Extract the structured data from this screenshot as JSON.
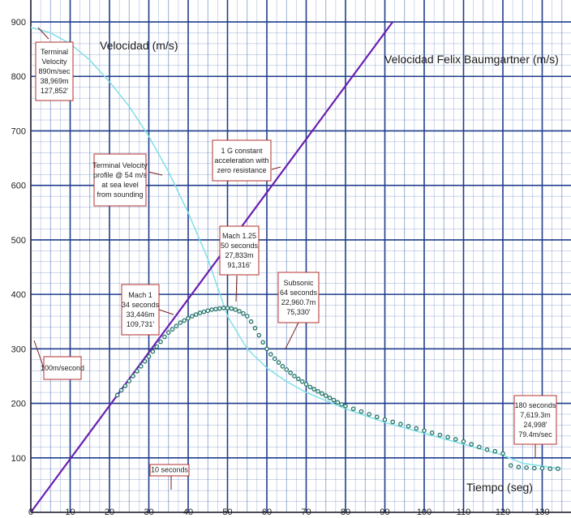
{
  "chart_data": {
    "type": "line",
    "title": "Velocidad Felix Baumgartner (m/s)",
    "ylabel": "Velocidad (m/s)",
    "xlabel": "Tiempo (seg)",
    "xlim": [
      0,
      135
    ],
    "ylim": [
      0,
      900
    ],
    "x_ticks": [
      "0",
      "10",
      "20",
      "30",
      "40",
      "50",
      "60",
      "70",
      "80",
      "90",
      "100",
      "110",
      "120",
      "130"
    ],
    "y_ticks": [
      "100",
      "200",
      "300",
      "400",
      "500",
      "600",
      "700",
      "800",
      "900"
    ],
    "grid": true,
    "colors": {
      "grid_major": "#1f3d8c",
      "grid_minor": "#5a78b8",
      "constant_g": "#6a1fb0",
      "terminal": "#7fe0e8",
      "measured": "#1e6e64",
      "annotation_border": "#b0302c"
    },
    "series": [
      {
        "name": "constant_g",
        "style": "line",
        "x": [
          0,
          92
        ],
        "y": [
          0,
          900
        ]
      },
      {
        "name": "terminal",
        "style": "line",
        "x": [
          0,
          5,
          10,
          15,
          20,
          25,
          30,
          35,
          40,
          45,
          50,
          55,
          60,
          65,
          70,
          75,
          80,
          90,
          100,
          110,
          120,
          125,
          135
        ],
        "y": [
          890,
          880,
          860,
          830,
          790,
          745,
          690,
          625,
          550,
          465,
          360,
          300,
          265,
          240,
          220,
          205,
          190,
          165,
          145,
          125,
          105,
          90,
          80
        ]
      },
      {
        "name": "measured",
        "style": "points",
        "x": [
          22,
          23,
          24,
          25,
          26,
          27,
          28,
          29,
          30,
          31,
          32,
          33,
          34,
          35,
          36,
          37,
          38,
          39,
          40,
          41,
          42,
          43,
          44,
          45,
          46,
          47,
          48,
          49,
          50,
          51,
          52,
          53,
          54,
          55,
          56,
          57,
          58,
          59,
          60,
          61,
          62,
          63,
          64,
          65,
          66,
          67,
          68,
          69,
          70,
          71,
          72,
          73,
          74,
          75,
          76,
          77,
          78,
          79,
          80,
          82,
          84,
          86,
          88,
          90,
          92,
          94,
          96,
          98,
          100,
          102,
          104,
          106,
          108,
          110,
          112,
          114,
          116,
          118,
          120,
          122,
          124,
          126,
          128,
          130,
          132,
          134
        ],
        "y": [
          215,
          224,
          232,
          241,
          250,
          259,
          268,
          277,
          286,
          295,
          304,
          313,
          322,
          330,
          336,
          342,
          348,
          352,
          356,
          360,
          363,
          366,
          368,
          370,
          372,
          373,
          374,
          375,
          375,
          374,
          372,
          369,
          365,
          360,
          350,
          338,
          325,
          312,
          300,
          290,
          282,
          275,
          268,
          262,
          256,
          250,
          245,
          240,
          235,
          230,
          226,
          222,
          218,
          214,
          210,
          206,
          202,
          198,
          195,
          190,
          185,
          180,
          175,
          170,
          166,
          162,
          158,
          154,
          150,
          146,
          142,
          138,
          134,
          130,
          125,
          120,
          115,
          112,
          108,
          86,
          83,
          82,
          81,
          81,
          80,
          80
        ]
      }
    ],
    "annotations": [
      {
        "id": "terminal-velocity",
        "lines": [
          "Terminal",
          "Velocity",
          "890m/sec",
          "38,969m",
          "127,852'"
        ],
        "x": 2,
        "y": 890
      },
      {
        "id": "terminal-profile",
        "lines": [
          "Terminal Velocity",
          "profile @ 54 m/s",
          "at sea level",
          "from sounding"
        ],
        "x": 33,
        "y": 615
      },
      {
        "id": "one-g",
        "lines": [
          "1 G constant",
          "acceleration with",
          "zero resistance"
        ],
        "x": 63,
        "y": 620
      },
      {
        "id": "mach-125",
        "lines": [
          "Mach 1.25",
          "50 seconds",
          "27,833m",
          "91,316'"
        ],
        "x": 50,
        "y": 375
      },
      {
        "id": "mach-1",
        "lines": [
          "Mach 1",
          "34 seconds",
          "33,446m",
          "109,731'"
        ],
        "x": 33,
        "y": 320
      },
      {
        "id": "subsonic",
        "lines": [
          "Subsonic",
          "64 seconds",
          "22,960.7m",
          "75,330'"
        ],
        "x": 64,
        "y": 285
      },
      {
        "id": "speed-scale",
        "lines": [
          "100m/second"
        ],
        "x": 0,
        "y": 250
      },
      {
        "id": "time-scale",
        "lines": [
          "10 seconds"
        ],
        "x": 35,
        "y": 15
      },
      {
        "id": "final-point",
        "lines": [
          "180 seconds",
          "7,619.3m",
          "24,998'",
          "79.4m/sec"
        ],
        "x": 131,
        "y": 78
      }
    ]
  }
}
